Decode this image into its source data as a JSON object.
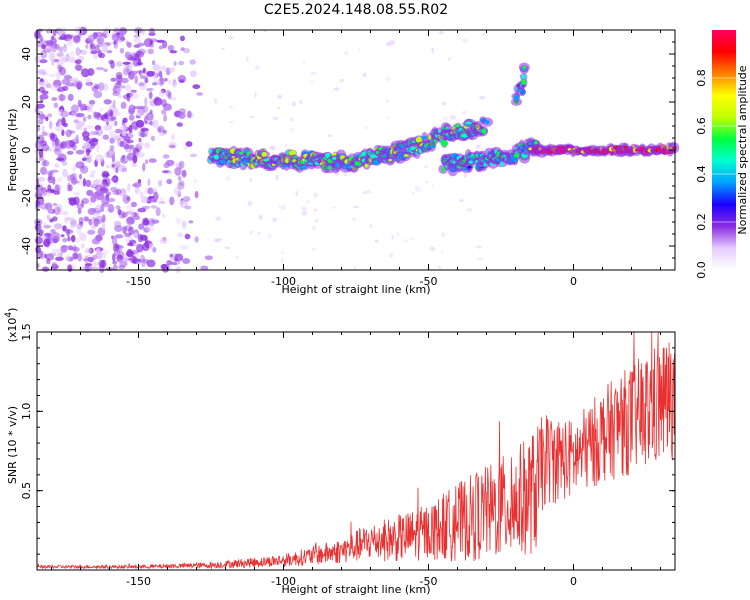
{
  "title": "C2E5.2024.148.08.55.R02",
  "chart_data": [
    {
      "type": "heatmap",
      "name": "spectrogram",
      "xlabel": "Height of straight line (km)",
      "ylabel": "Frequency (Hz)",
      "xlim": [
        -185,
        35
      ],
      "ylim": [
        -50,
        50
      ],
      "xticks": [
        -150,
        -100,
        -50,
        0
      ],
      "yticks": [
        -40,
        -20,
        0,
        20,
        40
      ],
      "colorbar": {
        "label": "Normalized spectral amplitude",
        "range": [
          0.0,
          1.0
        ],
        "ticks": [
          "0.0",
          "0.2",
          "0.4",
          "0.6",
          "0.8"
        ],
        "colors": [
          "#ffffff",
          "#e6ccff",
          "#8a2be2",
          "#1a00ff",
          "#00a0ff",
          "#00ffd0",
          "#00ff40",
          "#c0ff00",
          "#ffff00",
          "#ff8000",
          "#ff0000",
          "#ff0060"
        ]
      },
      "features": [
        {
          "name": "noise-region",
          "x_range": [
            -185,
            -125
          ],
          "freq_range": [
            -50,
            50
          ],
          "level": 0.2
        },
        {
          "name": "main-trace",
          "points": [
            [
              -125,
              -3
            ],
            [
              -100,
              -4
            ],
            [
              -75,
              -5
            ],
            [
              -55,
              1
            ],
            [
              -40,
              8
            ],
            [
              -30,
              10
            ]
          ],
          "level": 0.5
        },
        {
          "name": "lower-trace",
          "points": [
            [
              -45,
              -6
            ],
            [
              -30,
              -4
            ],
            [
              -20,
              -2
            ],
            [
              -12,
              2
            ]
          ],
          "level": 0.45
        },
        {
          "name": "upper-branch",
          "points": [
            [
              -20,
              22
            ],
            [
              -18,
              26
            ],
            [
              -17,
              34
            ]
          ],
          "level": 0.4
        },
        {
          "name": "steady-tone",
          "points": [
            [
              -15,
              0
            ],
            [
              35,
              0
            ]
          ],
          "level": 0.95
        }
      ]
    },
    {
      "type": "line",
      "name": "snr",
      "xlabel": "Height of straight line (km)",
      "ylabel": "SNR (10 * v/v)",
      "ylabel_exponent": "(x10",
      "ylabel_exponent_power": "4",
      "xlim": [
        -185,
        35
      ],
      "ylim": [
        0,
        1.5
      ],
      "xticks": [
        -150,
        -100,
        -50,
        0
      ],
      "yticks": [
        "0.5",
        "1.0",
        "1.5"
      ],
      "color": "#e83030",
      "series": [
        {
          "name": "SNR envelope",
          "x": [
            -185,
            -150,
            -125,
            -100,
            -80,
            -70,
            -60,
            -50,
            -40,
            -30,
            -20,
            -13,
            -10,
            0,
            10,
            20,
            30,
            35
          ],
          "y_mean": [
            0.02,
            0.02,
            0.03,
            0.06,
            0.12,
            0.18,
            0.2,
            0.24,
            0.3,
            0.36,
            0.42,
            0.5,
            0.7,
            0.7,
            0.85,
            0.95,
            1.05,
            1.1
          ],
          "y_amp": [
            0.01,
            0.01,
            0.02,
            0.04,
            0.08,
            0.12,
            0.15,
            0.18,
            0.25,
            0.3,
            0.35,
            0.4,
            0.3,
            0.25,
            0.3,
            0.35,
            0.4,
            0.4
          ]
        }
      ]
    }
  ]
}
